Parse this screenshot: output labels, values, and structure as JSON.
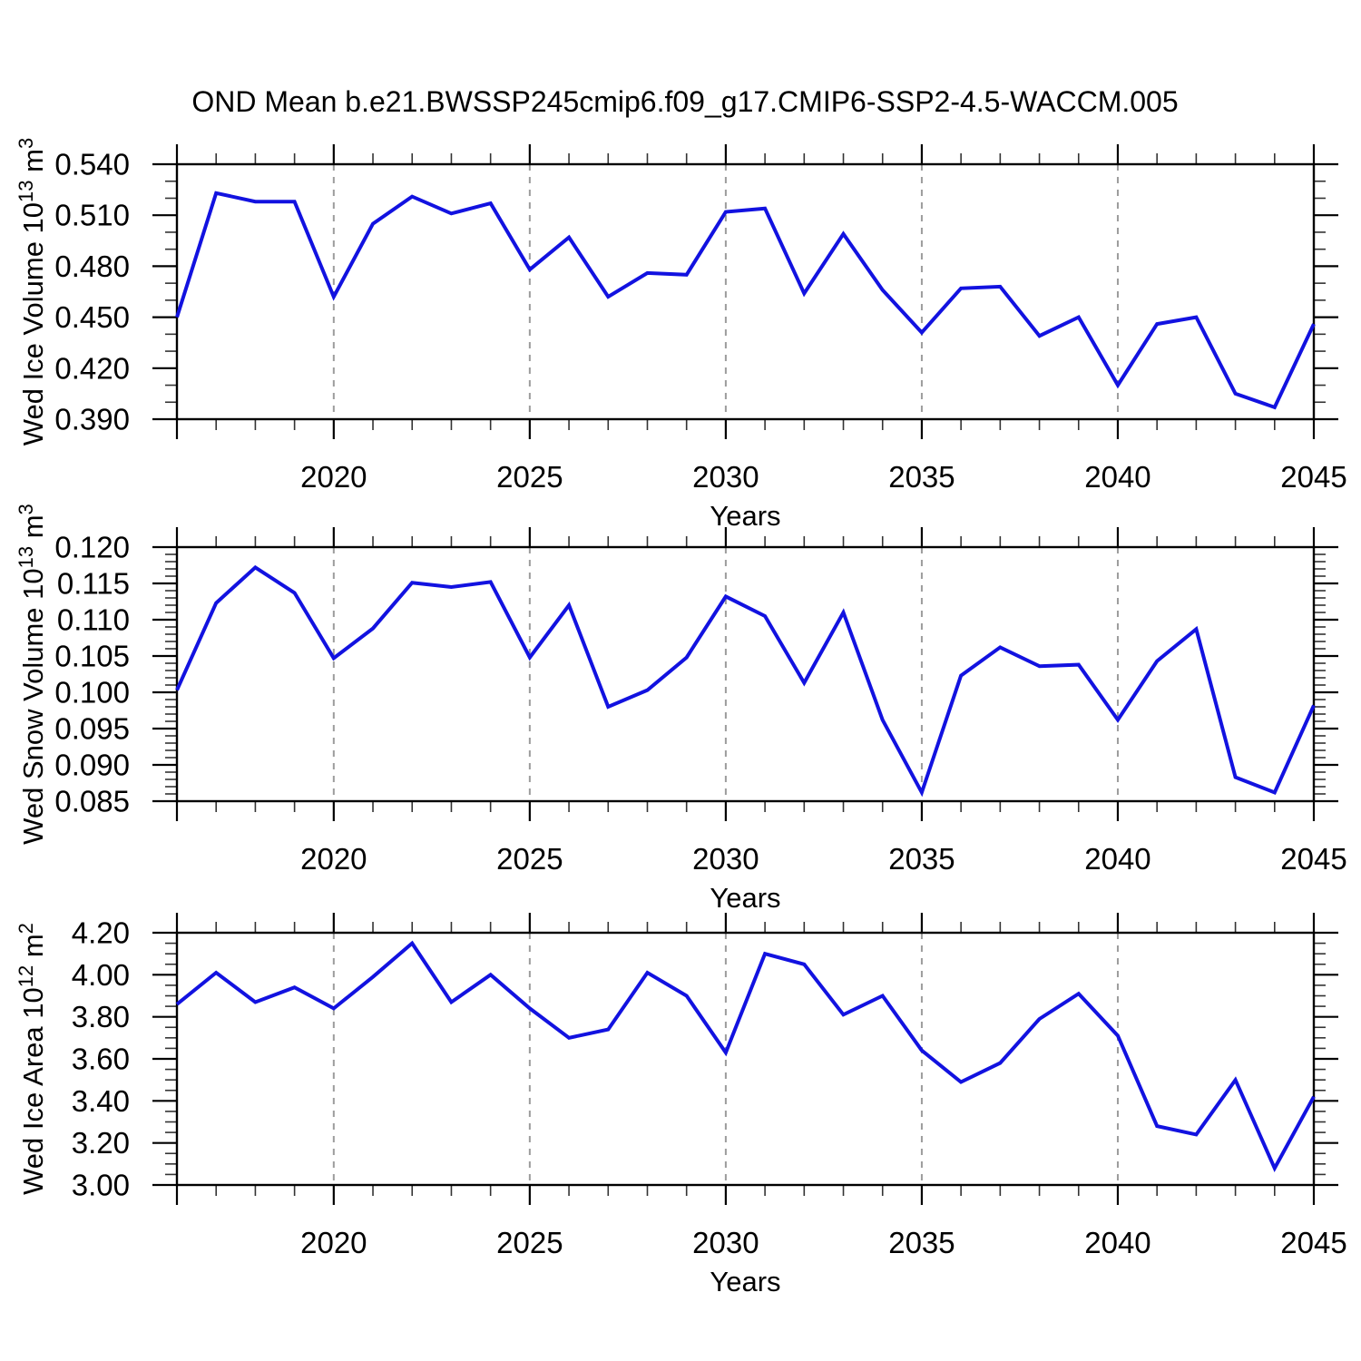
{
  "title": "OND Mean b.e21.BWSSP245cmip6.f09_g17.CMIP6-SSP2-4.5-WACCM.005",
  "x_axis_label": "Years",
  "colors": {
    "line": "#1212e0",
    "frame": "#000000",
    "grid": "#9c9c9c",
    "major_tick": "#000000",
    "minor_tick": "#333333",
    "text": "#000000"
  },
  "years": [
    2016,
    2017,
    2018,
    2019,
    2020,
    2021,
    2022,
    2023,
    2024,
    2025,
    2026,
    2027,
    2028,
    2029,
    2030,
    2031,
    2032,
    2033,
    2034,
    2035,
    2036,
    2037,
    2038,
    2039,
    2040,
    2041,
    2042,
    2043,
    2044,
    2045
  ],
  "x_axis": {
    "min": 2016,
    "max": 2045,
    "major_tick_years": [
      2020,
      2025,
      2030,
      2035,
      2040,
      2045
    ],
    "gridline_years": [
      2020,
      2025,
      2030,
      2035,
      2040
    ],
    "minor_step": 1
  },
  "chart_data": [
    {
      "type": "line",
      "name": "wed-ice-volume",
      "ylabel": "Wed Ice Volume 10^13 m^3",
      "ylabel_segments": [
        {
          "text": "Wed Ice Volume 10"
        },
        {
          "sup": "13"
        },
        {
          "text": " m"
        },
        {
          "sup": "3"
        }
      ],
      "ylim": [
        0.39,
        0.54
      ],
      "y_major_step": 0.03,
      "y_minor_step": 0.01,
      "y_decimals": 3,
      "y_tick_labels": [
        "0.390",
        "0.420",
        "0.450",
        "0.480",
        "0.510",
        "0.540"
      ],
      "values": [
        0.45,
        0.523,
        0.518,
        0.518,
        0.462,
        0.505,
        0.521,
        0.511,
        0.517,
        0.478,
        0.497,
        0.462,
        0.476,
        0.475,
        0.512,
        0.514,
        0.464,
        0.499,
        0.466,
        0.441,
        0.467,
        0.468,
        0.439,
        0.45,
        0.41,
        0.446,
        0.45,
        0.405,
        0.397,
        0.446
      ]
    },
    {
      "type": "line",
      "name": "wed-snow-volume",
      "ylabel": "Wed Snow Volume 10^13 m^3",
      "ylabel_segments": [
        {
          "text": "Wed Snow Volume 10"
        },
        {
          "sup": "13"
        },
        {
          "text": " m"
        },
        {
          "sup": "3"
        }
      ],
      "ylim": [
        0.085,
        0.12
      ],
      "y_major_step": 0.005,
      "y_minor_step": 0.001,
      "y_decimals": 3,
      "y_tick_labels": [
        "0.085",
        "0.090",
        "0.095",
        "0.100",
        "0.105",
        "0.110",
        "0.115",
        "0.120"
      ],
      "values": [
        0.1003,
        0.1123,
        0.1172,
        0.1137,
        0.1047,
        0.1088,
        0.1151,
        0.1145,
        0.1152,
        0.1048,
        0.112,
        0.098,
        0.1003,
        0.1048,
        0.1132,
        0.1105,
        0.1013,
        0.111,
        0.0962,
        0.0862,
        0.1023,
        0.1062,
        0.1036,
        0.1038,
        0.0962,
        0.1043,
        0.1087,
        0.0883,
        0.0862,
        0.0982
      ]
    },
    {
      "type": "line",
      "name": "wed-ice-area",
      "ylabel": "Wed Ice Area 10^12 m^2",
      "ylabel_segments": [
        {
          "text": "Wed Ice Area 10"
        },
        {
          "sup": "12"
        },
        {
          "text": " m"
        },
        {
          "sup": "2"
        }
      ],
      "ylim": [
        3.0,
        4.2
      ],
      "y_major_step": 0.2,
      "y_minor_step": 0.05,
      "y_decimals": 2,
      "y_tick_labels": [
        "3.00",
        "3.20",
        "3.40",
        "3.60",
        "3.80",
        "4.00",
        "4.20"
      ],
      "values": [
        3.86,
        4.01,
        3.87,
        3.94,
        3.84,
        3.99,
        4.15,
        3.87,
        4.0,
        3.84,
        3.7,
        3.74,
        4.01,
        3.9,
        3.63,
        4.1,
        4.05,
        3.81,
        3.9,
        3.64,
        3.49,
        3.58,
        3.79,
        3.91,
        3.71,
        3.28,
        3.24,
        3.5,
        3.08,
        3.42
      ]
    }
  ]
}
